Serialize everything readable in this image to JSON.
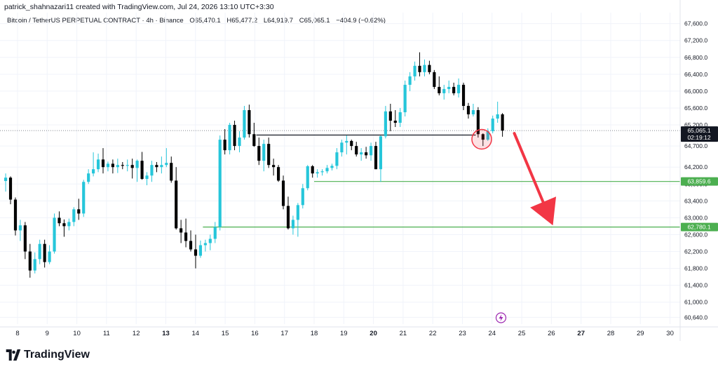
{
  "header": {
    "author_line": "patrick_shahnazari11 created with TradingView.com, Jul 24, 2026 13:10 UTC+3:30"
  },
  "symbol": {
    "name": "Bitcoin / TetherUS PERPETUAL CONTRACT · 4h · Binance",
    "open": "O65,470.1",
    "high": "H65,477.2",
    "low": "L64,919.7",
    "close": "C65,065.1",
    "change": "−404.9 (−0.62%)"
  },
  "brand": {
    "name": "TradingView"
  },
  "colors": {
    "up": "#22ab94",
    "up_fill": "#26c6da",
    "down": "#000000",
    "level": "#4caf50",
    "arrow": "#f23645",
    "circle": "#f23645",
    "price_label_bg": "#131722"
  },
  "chart_data": {
    "type": "candlestick",
    "y_scale": "linear",
    "ylim": [
      60480,
      67860
    ],
    "y_ticks": [
      "67,600.0",
      "67,200.0",
      "66,800.0",
      "66,400.0",
      "66,000.0",
      "65,600.0",
      "65,200.0",
      "64,700.0",
      "64,200.0",
      "63,800.0",
      "63,400.0",
      "63,000.0",
      "62,600.0",
      "62,200.0",
      "61,800.0",
      "61,400.0",
      "61,000.0",
      "60,640.0"
    ],
    "y_tick_values": [
      67600,
      67200,
      66800,
      66400,
      66000,
      65600,
      65200,
      64700,
      64200,
      63800,
      63400,
      63000,
      62600,
      62200,
      61800,
      61400,
      61000,
      60640
    ],
    "x_ticks": [
      {
        "label": "8",
        "bold": false
      },
      {
        "label": "9",
        "bold": false
      },
      {
        "label": "10",
        "bold": false
      },
      {
        "label": "11",
        "bold": false
      },
      {
        "label": "12",
        "bold": false
      },
      {
        "label": "13",
        "bold": true
      },
      {
        "label": "14",
        "bold": false
      },
      {
        "label": "15",
        "bold": false
      },
      {
        "label": "16",
        "bold": false
      },
      {
        "label": "17",
        "bold": false
      },
      {
        "label": "18",
        "bold": false
      },
      {
        "label": "19",
        "bold": false
      },
      {
        "label": "20",
        "bold": true
      },
      {
        "label": "21",
        "bold": false
      },
      {
        "label": "22",
        "bold": false
      },
      {
        "label": "23",
        "bold": false
      },
      {
        "label": "24",
        "bold": false
      },
      {
        "label": "25",
        "bold": false
      },
      {
        "label": "26",
        "bold": false
      },
      {
        "label": "27",
        "bold": true
      },
      {
        "label": "28",
        "bold": false
      },
      {
        "label": "29",
        "bold": false
      },
      {
        "label": "30",
        "bold": false
      }
    ],
    "price_labels": [
      {
        "value": 65065.1,
        "text": "65,065.1",
        "sub": "02:19:12",
        "style": "current"
      },
      {
        "value": 63859.6,
        "text": "63,859.6",
        "style": "level"
      },
      {
        "value": 62780.1,
        "text": "62,780.1",
        "style": "level"
      }
    ],
    "levels": [
      {
        "value": 63859.6,
        "from_day": 18.0
      },
      {
        "value": 62780.1,
        "from_day": 14.25
      }
    ],
    "resistance_line": {
      "value": 64960,
      "from_day": 16.05,
      "to_day": 23.45
    },
    "current_price": 65065.1,
    "circle_marker": {
      "day": 23.65,
      "value": 64860
    },
    "arrow": {
      "from": {
        "day": 24.75,
        "value": 65000
      },
      "to": {
        "day": 26.05,
        "value": 62820
      }
    },
    "candles_ohlc": [
      [
        63870,
        64050,
        63620,
        63950
      ],
      [
        63950,
        63980,
        63320,
        63430
      ],
      [
        63430,
        63480,
        62580,
        62700
      ],
      [
        62700,
        62950,
        62450,
        62820
      ],
      [
        62820,
        62900,
        62020,
        62200
      ],
      [
        62200,
        62380,
        61580,
        61750
      ],
      [
        61750,
        62180,
        61680,
        62020
      ],
      [
        62020,
        62480,
        61900,
        62380
      ],
      [
        62380,
        62480,
        61820,
        61950
      ],
      [
        61950,
        62350,
        61900,
        62200
      ],
      [
        62200,
        63100,
        62150,
        63000
      ],
      [
        63000,
        63150,
        62800,
        62870
      ],
      [
        62870,
        62960,
        62550,
        62800
      ],
      [
        62800,
        62980,
        62700,
        62900
      ],
      [
        62900,
        63250,
        62800,
        63200
      ],
      [
        63200,
        63450,
        62950,
        63100
      ],
      [
        63100,
        63900,
        63020,
        63850
      ],
      [
        63850,
        64150,
        63800,
        64050
      ],
      [
        64050,
        64550,
        63980,
        64150
      ],
      [
        64150,
        64520,
        64080,
        64380
      ],
      [
        64380,
        64650,
        64050,
        64200
      ],
      [
        64200,
        64330,
        64100,
        64280
      ],
      [
        64280,
        64380,
        64050,
        64200
      ],
      [
        64200,
        64400,
        64060,
        64250
      ],
      [
        64250,
        64320,
        64150,
        64230
      ],
      [
        64230,
        64380,
        64100,
        64250
      ],
      [
        64250,
        64400,
        63930,
        64180
      ],
      [
        64180,
        64380,
        63850,
        64350
      ],
      [
        64350,
        64560,
        63900,
        63920
      ],
      [
        63920,
        64080,
        63770,
        64000
      ],
      [
        64000,
        64350,
        63850,
        64250
      ],
      [
        64250,
        64320,
        64080,
        64200
      ],
      [
        64200,
        64450,
        64050,
        64250
      ],
      [
        64250,
        64650,
        64200,
        64300
      ],
      [
        64300,
        64450,
        63830,
        63880
      ],
      [
        63880,
        64200,
        62720,
        62750
      ],
      [
        62750,
        62950,
        62400,
        62650
      ],
      [
        62650,
        62980,
        62300,
        62450
      ],
      [
        62450,
        62700,
        62200,
        62250
      ],
      [
        62250,
        62600,
        61800,
        62100
      ],
      [
        62100,
        62460,
        62050,
        62350
      ],
      [
        62350,
        62480,
        62200,
        62400
      ],
      [
        62400,
        62600,
        62230,
        62500
      ],
      [
        62500,
        62900,
        62400,
        62780
      ],
      [
        62780,
        64950,
        62700,
        64850
      ],
      [
        64850,
        65100,
        64500,
        64600
      ],
      [
        64600,
        65250,
        64500,
        65200
      ],
      [
        65200,
        65300,
        64600,
        64700
      ],
      [
        64700,
        65050,
        64550,
        64900
      ],
      [
        64900,
        65650,
        64850,
        65550
      ],
      [
        65550,
        65680,
        64900,
        64980
      ],
      [
        64980,
        65250,
        64680,
        64700
      ],
      [
        64700,
        64900,
        64250,
        64350
      ],
      [
        64350,
        64850,
        64100,
        64750
      ],
      [
        64750,
        64900,
        64180,
        64250
      ],
      [
        64250,
        64400,
        64000,
        64200
      ],
      [
        64200,
        64250,
        63850,
        63880
      ],
      [
        63880,
        64000,
        63200,
        63280
      ],
      [
        63280,
        63500,
        62720,
        62750
      ],
      [
        62750,
        63050,
        62600,
        62950
      ],
      [
        62950,
        63350,
        62550,
        63300
      ],
      [
        63300,
        63800,
        63220,
        63700
      ],
      [
        63700,
        64250,
        63650,
        64220
      ],
      [
        64220,
        64250,
        63950,
        64050
      ],
      [
        64050,
        64150,
        63950,
        64080
      ],
      [
        64080,
        64150,
        64000,
        64100
      ],
      [
        64100,
        64250,
        64050,
        64180
      ],
      [
        64180,
        64280,
        64120,
        64230
      ],
      [
        64230,
        64650,
        64150,
        64550
      ],
      [
        64550,
        64850,
        64450,
        64780
      ],
      [
        64780,
        64950,
        64500,
        64820
      ],
      [
        64820,
        64850,
        64600,
        64700
      ],
      [
        64700,
        64800,
        64450,
        64500
      ],
      [
        64500,
        64650,
        64350,
        64550
      ],
      [
        64550,
        64680,
        64400,
        64480
      ],
      [
        64480,
        64780,
        64350,
        64700
      ],
      [
        64700,
        64800,
        64150,
        64150
      ],
      [
        64150,
        64950,
        63850,
        64930
      ],
      [
        64930,
        65650,
        64880,
        65520
      ],
      [
        65520,
        65700,
        65050,
        65300
      ],
      [
        65300,
        65550,
        65150,
        65250
      ],
      [
        65250,
        65600,
        65150,
        65500
      ],
      [
        65500,
        66250,
        65400,
        66150
      ],
      [
        66150,
        66450,
        66000,
        66350
      ],
      [
        66350,
        66700,
        66250,
        66600
      ],
      [
        66600,
        66920,
        66350,
        66450
      ],
      [
        66450,
        66750,
        66350,
        66620
      ],
      [
        66620,
        66720,
        66400,
        66450
      ],
      [
        66450,
        66500,
        66050,
        66100
      ],
      [
        66100,
        66350,
        65900,
        65950
      ],
      [
        65950,
        66150,
        65800,
        66050
      ],
      [
        66050,
        66250,
        65950,
        66100
      ],
      [
        66100,
        66200,
        65900,
        65950
      ],
      [
        65950,
        66300,
        65850,
        66150
      ],
      [
        66150,
        66200,
        65550,
        65650
      ],
      [
        65650,
        65720,
        65350,
        65450
      ],
      [
        65450,
        65700,
        65400,
        65550
      ],
      [
        65550,
        65620,
        64900,
        64980
      ],
      [
        64980,
        65000,
        64700,
        64850
      ],
      [
        64850,
        65120,
        64820,
        65050
      ],
      [
        65050,
        65420,
        65000,
        65350
      ],
      [
        65350,
        65750,
        65250,
        65450
      ],
      [
        65450,
        65480,
        64920,
        65065
      ]
    ]
  }
}
